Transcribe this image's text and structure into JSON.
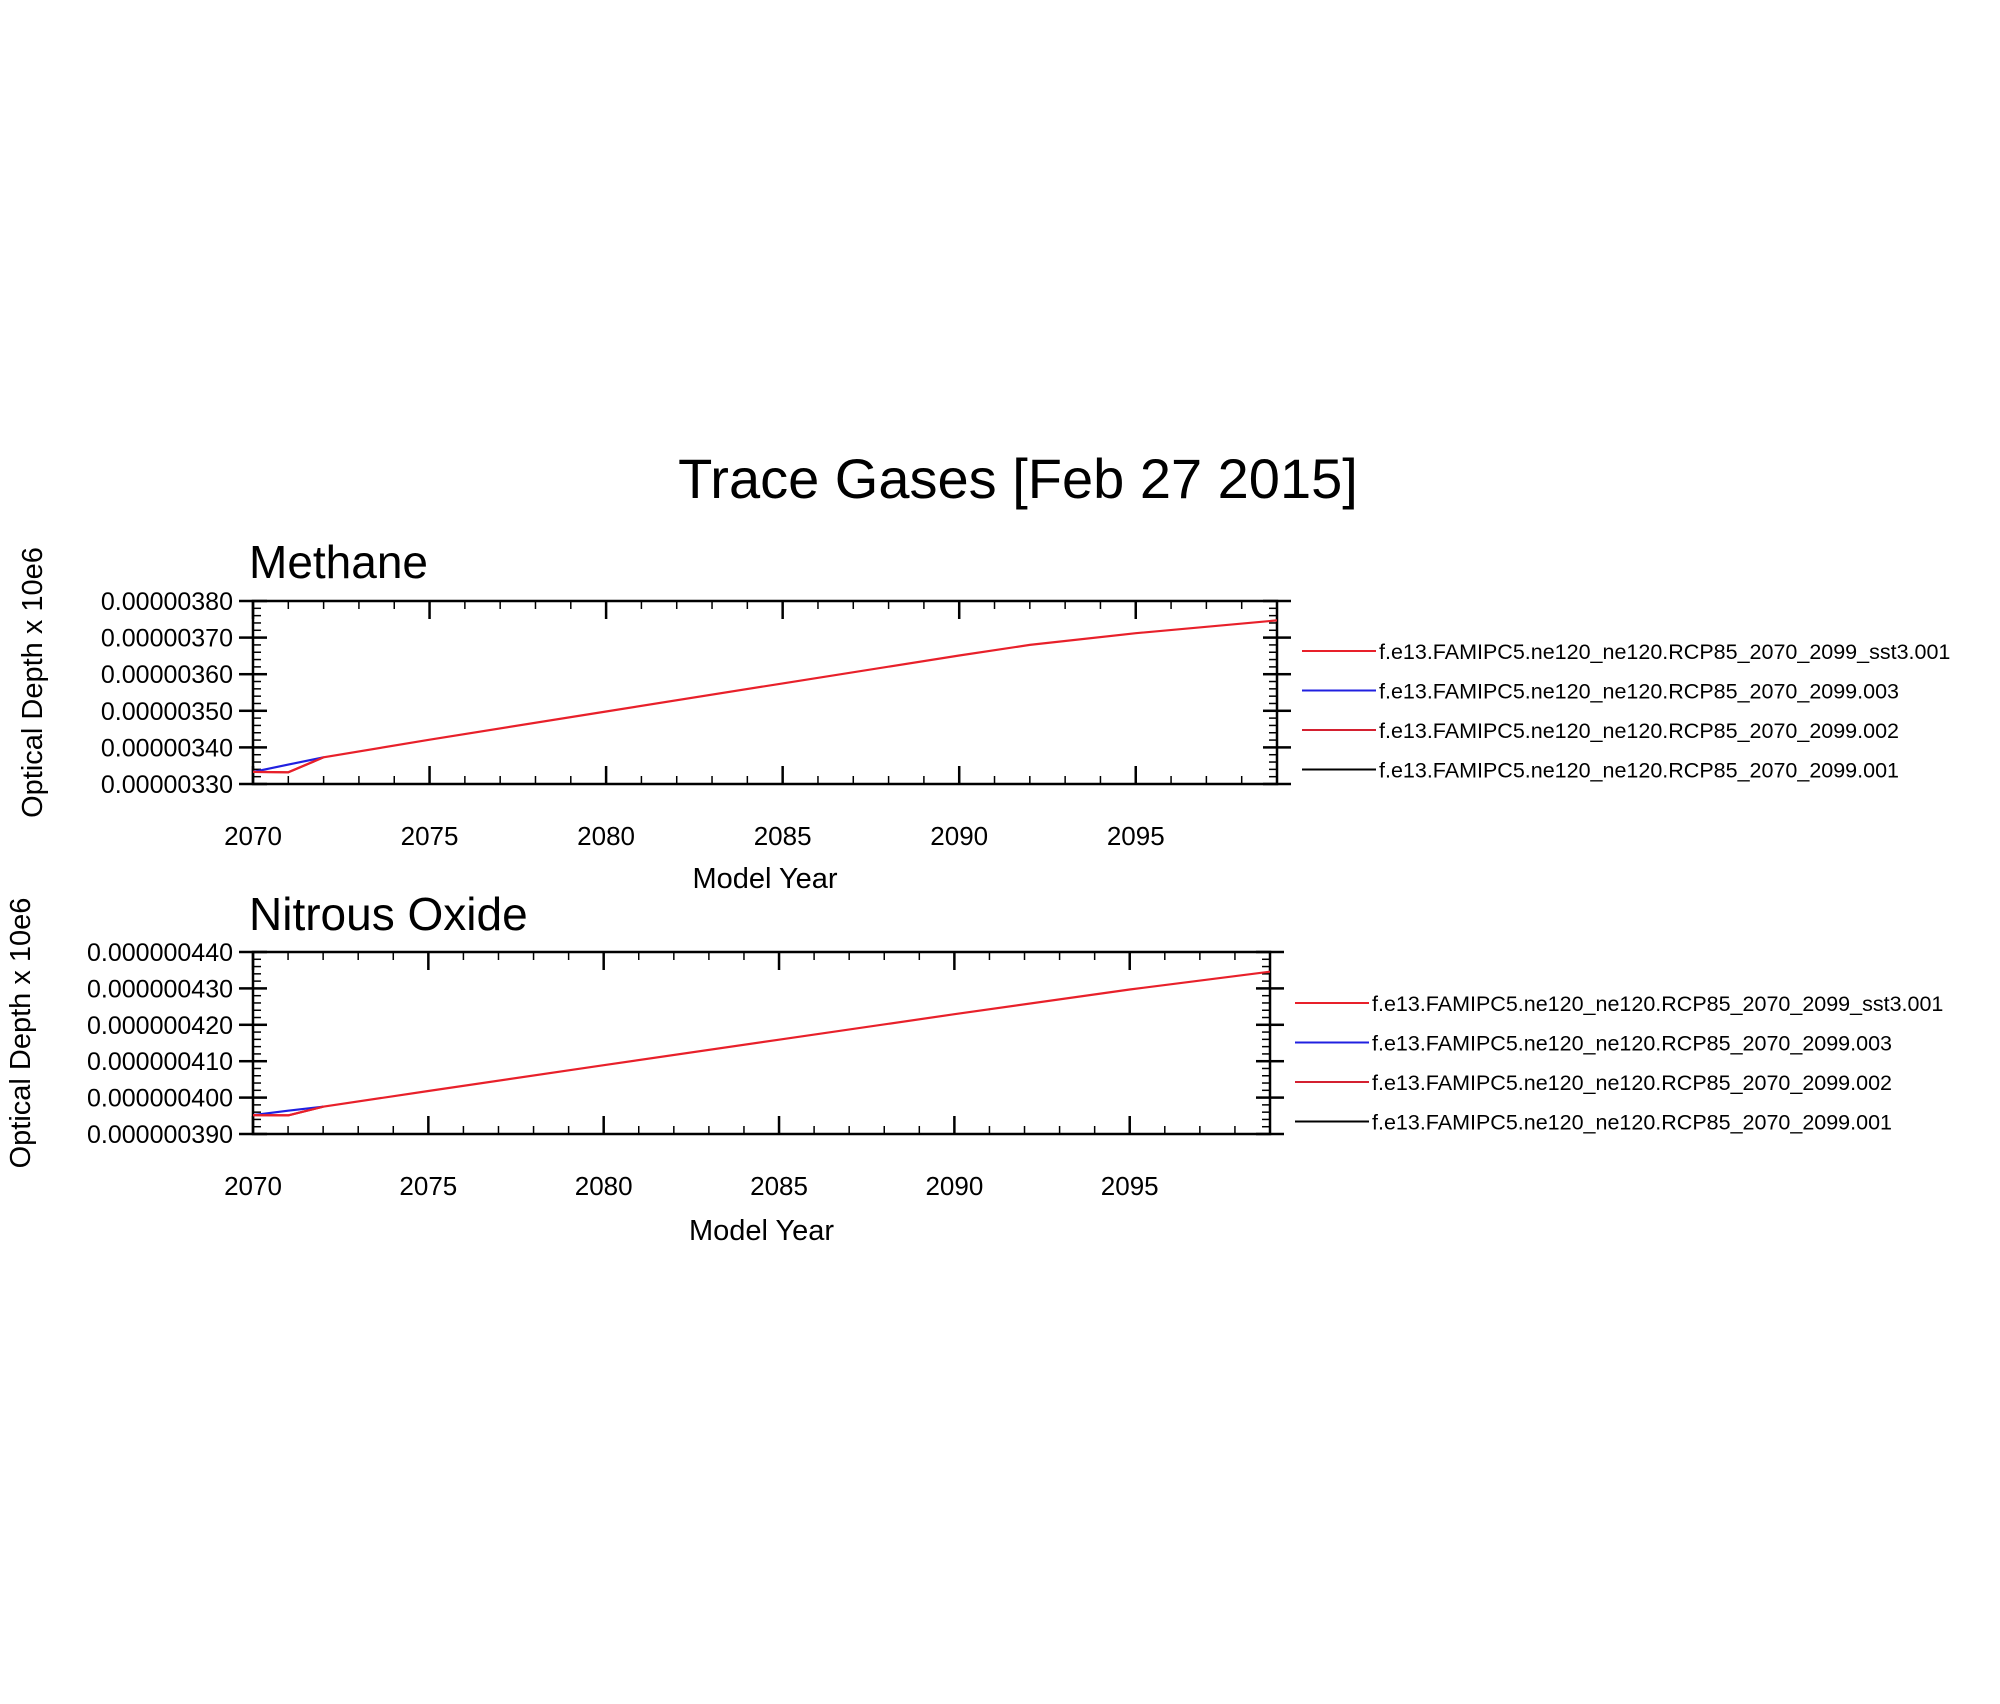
{
  "figure": {
    "title": "Trace Gases [Feb 27 2015]"
  },
  "chart_data": [
    {
      "type": "line",
      "title": "Methane",
      "xlabel": "Model Year",
      "ylabel": "Optical Depth x 10e6",
      "xlim": [
        2070,
        2099
      ],
      "ylim": [
        3.3e-06,
        3.8e-06
      ],
      "xticks": [
        2070,
        2075,
        2080,
        2085,
        2090,
        2095
      ],
      "xtick_labels": [
        "2070",
        "2075",
        "2080",
        "2085",
        "2090",
        "2095"
      ],
      "yticks": [
        3.3e-06,
        3.4e-06,
        3.5e-06,
        3.6e-06,
        3.7e-06,
        3.8e-06
      ],
      "ytick_labels": [
        "0.00000330",
        "0.00000340",
        "0.00000350",
        "0.00000360",
        "0.00000370",
        "0.00000380"
      ],
      "legend_position": "right",
      "series": [
        {
          "name": "f.e13.FAMIPC5.ne120_ne120.RCP85_2070_2099_sst3.001",
          "color": "#e8202a",
          "x": [
            2070,
            2071,
            2072,
            2075,
            2080,
            2085,
            2090,
            2092,
            2095,
            2099
          ],
          "y": [
            3.333e-06,
            3.332e-06,
            3.373e-06,
            3.421e-06,
            3.498e-06,
            3.575e-06,
            3.651e-06,
            3.68e-06,
            3.712e-06,
            3.747e-06
          ]
        },
        {
          "name": "f.e13.FAMIPC5.ne120_ne120.RCP85_2070_2099.003",
          "color": "#2020e0",
          "x": [
            2070,
            2071,
            2072
          ],
          "y": [
            3.333e-06,
            3.353e-06,
            3.373e-06
          ]
        },
        {
          "name": "f.e13.FAMIPC5.ne120_ne120.RCP85_2070_2099.002",
          "color": "#d42030",
          "x": [
            2070,
            2071,
            2072
          ],
          "y": [
            3.333e-06,
            3.332e-06,
            3.373e-06
          ]
        },
        {
          "name": "f.e13.FAMIPC5.ne120_ne120.RCP85_2070_2099.001",
          "color": "#000000",
          "x": [
            2070
          ],
          "y": [
            3.333e-06
          ]
        }
      ]
    },
    {
      "type": "line",
      "title": "Nitrous Oxide",
      "xlabel": "Model Year",
      "ylabel": "Optical Depth x 10e6",
      "xlim": [
        2070,
        2099
      ],
      "ylim": [
        3.9e-07,
        4.4e-07
      ],
      "xticks": [
        2070,
        2075,
        2080,
        2085,
        2090,
        2095
      ],
      "xtick_labels": [
        "2070",
        "2075",
        "2080",
        "2085",
        "2090",
        "2095"
      ],
      "yticks": [
        3.9e-07,
        4e-07,
        4.1e-07,
        4.2e-07,
        4.3e-07,
        4.4e-07
      ],
      "ytick_labels": [
        "0.000000390",
        "0.000000400",
        "0.000000410",
        "0.000000420",
        "0.000000430",
        "0.000000440"
      ],
      "legend_position": "right",
      "series": [
        {
          "name": "f.e13.FAMIPC5.ne120_ne120.RCP85_2070_2099_sst3.001",
          "color": "#e8202a",
          "x": [
            2070,
            2071,
            2072,
            2075,
            2080,
            2085,
            2090,
            2095,
            2099
          ],
          "y": [
            3.952e-07,
            3.951e-07,
            3.975e-07,
            4.018e-07,
            4.089e-07,
            4.159e-07,
            4.229e-07,
            4.297e-07,
            4.346e-07
          ]
        },
        {
          "name": "f.e13.FAMIPC5.ne120_ne120.RCP85_2070_2099.003",
          "color": "#2020e0",
          "x": [
            2070,
            2071,
            2072
          ],
          "y": [
            3.952e-07,
            3.964e-07,
            3.975e-07
          ]
        },
        {
          "name": "f.e13.FAMIPC5.ne120_ne120.RCP85_2070_2099.002",
          "color": "#d42030",
          "x": [
            2070,
            2071,
            2072
          ],
          "y": [
            3.952e-07,
            3.951e-07,
            3.975e-07
          ]
        },
        {
          "name": "f.e13.FAMIPC5.ne120_ne120.RCP85_2070_2099.001",
          "color": "#000000",
          "x": [
            2070
          ],
          "y": [
            3.952e-07
          ]
        }
      ]
    }
  ]
}
